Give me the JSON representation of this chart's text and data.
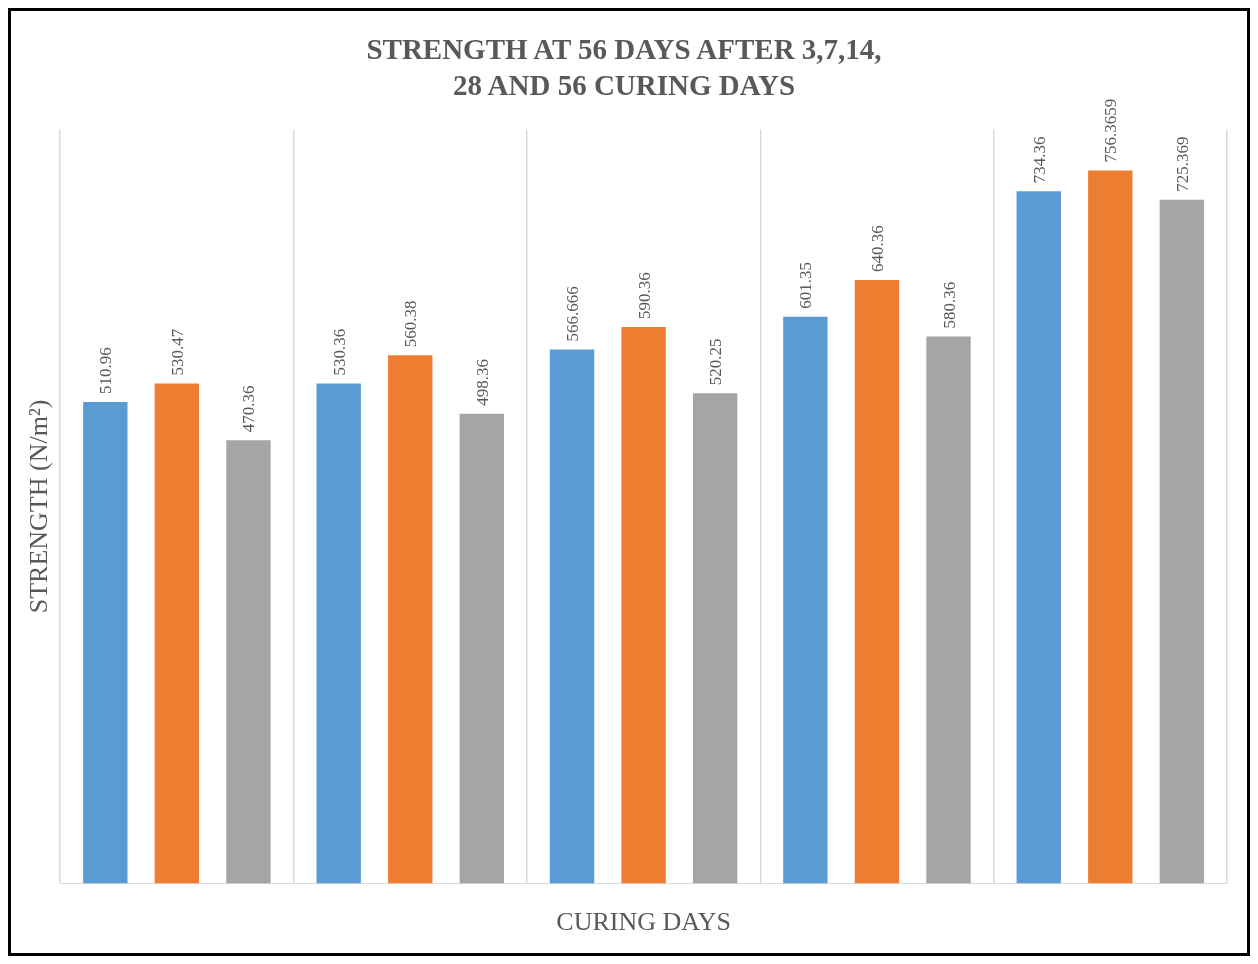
{
  "chart_data": {
    "type": "bar",
    "title": "STRENGTH AT 56 DAYS AFTER 3,7,14, 28 AND 56 CURING DAYS",
    "xlabel": "CURING DAYS",
    "ylabel": "STRENGTH (N/m²)",
    "categories": [
      null,
      null,
      null,
      null,
      null
    ],
    "series": [
      {
        "color": "#5b9bd5",
        "values": [
          510.96,
          530.36,
          566.666,
          601.35,
          734.36
        ]
      },
      {
        "color": "#ed7d31",
        "values": [
          530.47,
          560.38,
          590.36,
          640.36,
          756.3659
        ]
      },
      {
        "color": "#a5a5a5",
        "values": [
          470.36,
          498.36,
          520.25,
          580.36,
          725.369
        ]
      }
    ],
    "grid": "x",
    "legend": false,
    "data_labels": true
  }
}
